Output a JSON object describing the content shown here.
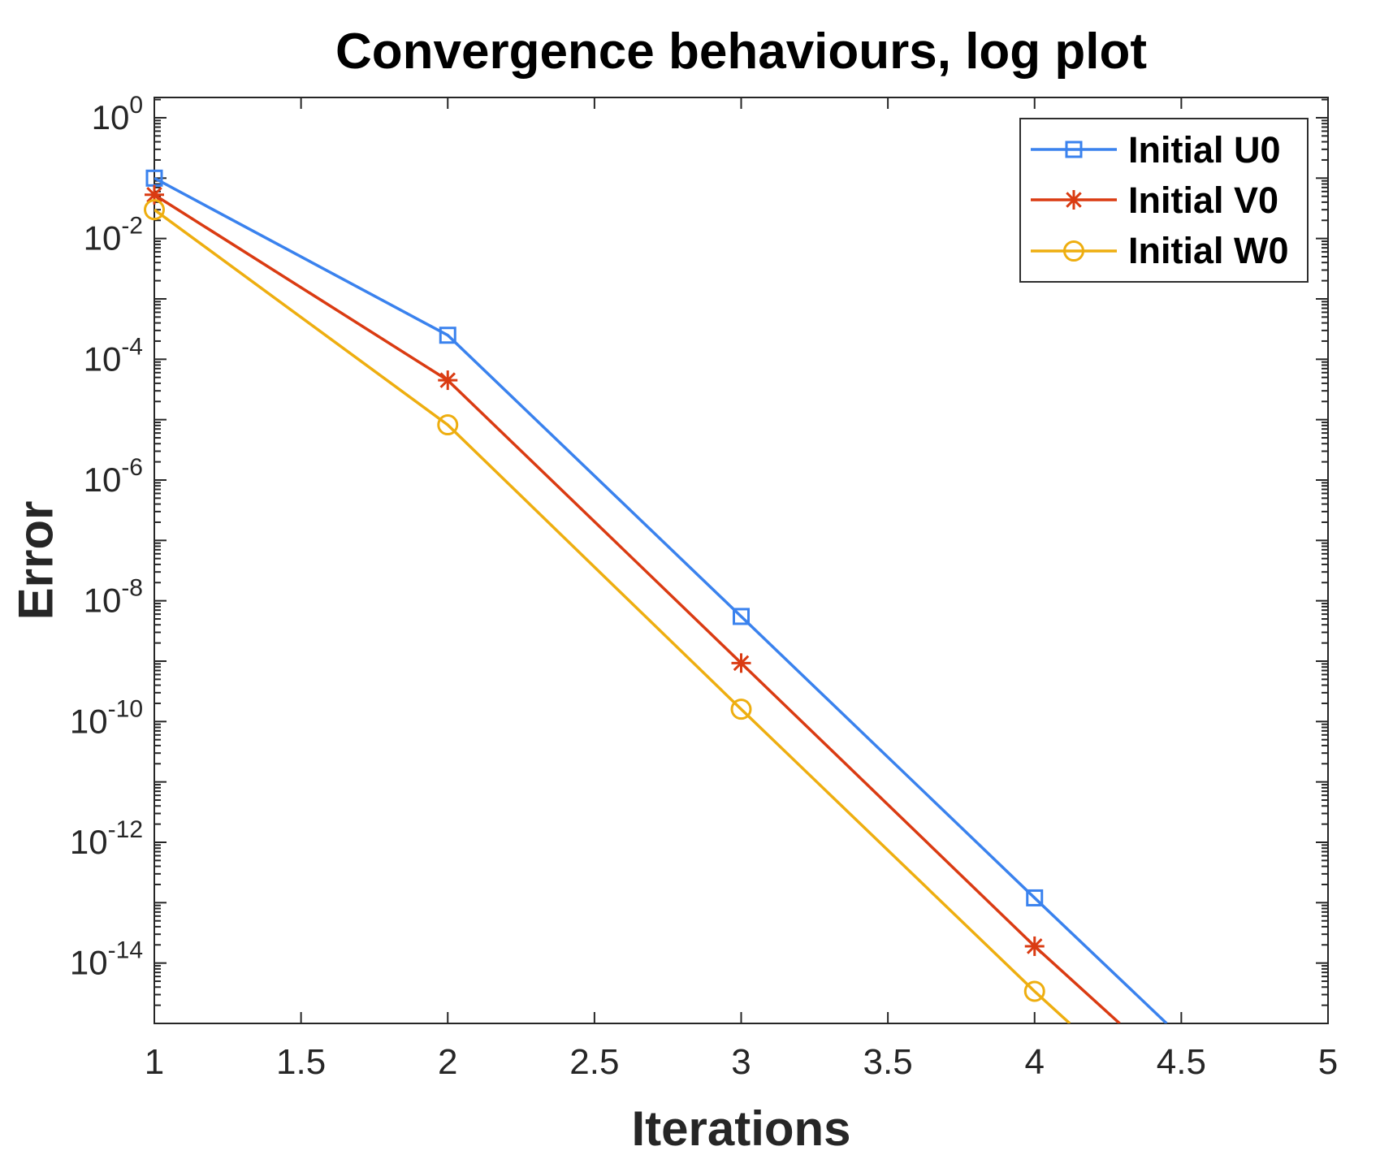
{
  "title": "Convergence behaviours, log plot",
  "x_axis_label": "Iterations",
  "y_axis_label": "Error",
  "colors": {
    "axis": "#262626",
    "title": "#000000",
    "blue": "#3a82ee",
    "red": "#da3b12",
    "yellow": "#eeae10"
  },
  "chart_data": {
    "type": "line",
    "title": "Convergence behaviours, log plot",
    "xlabel": "Iterations",
    "ylabel": "Error",
    "y_scale": "log",
    "grid": false,
    "legend_position": "northeast",
    "xlim": [
      1,
      5
    ],
    "ylim_log10": [
      -15,
      0.336
    ],
    "x_ticks": [
      1,
      1.5,
      2,
      2.5,
      3,
      3.5,
      4,
      4.5,
      5
    ],
    "x_tick_labels": [
      "1",
      "1.5",
      "2",
      "2.5",
      "3",
      "3.5",
      "4",
      "4.5",
      "5"
    ],
    "y_tick_exponents": [
      0,
      -2,
      -4,
      -6,
      -8,
      -10,
      -12,
      -14
    ],
    "series": [
      {
        "name": "Initial U0",
        "color": "#3a82ee",
        "marker": "square",
        "x": [
          1,
          2,
          3,
          4
        ],
        "y": [
          0.1,
          0.00025,
          5.5e-09,
          1.2e-13
        ],
        "line_exit": {
          "x": 4.45,
          "y": 1e-15
        }
      },
      {
        "name": "Initial V0",
        "color": "#da3b12",
        "marker": "asterisk",
        "x": [
          1,
          2,
          3,
          4
        ],
        "y": [
          0.053,
          4.5e-05,
          9.3e-10,
          1.9e-14
        ],
        "line_exit": {
          "x": 4.29,
          "y": 1e-15
        }
      },
      {
        "name": "Initial W0",
        "color": "#eeae10",
        "marker": "circle",
        "x": [
          1,
          2,
          3,
          4
        ],
        "y": [
          0.03,
          8.2e-06,
          1.6e-10,
          3.4e-15
        ],
        "line_exit": {
          "x": 4.12,
          "y": 1e-15
        }
      }
    ]
  }
}
